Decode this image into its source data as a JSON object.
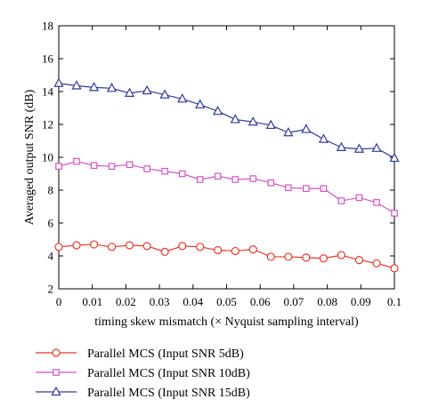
{
  "chart_data": {
    "type": "line",
    "xlabel": "timing skew mismatch (× Nyquist sampling interval)",
    "ylabel": "Averaged output SNR (dB)",
    "xlim": [
      0,
      0.1
    ],
    "ylim": [
      2,
      18
    ],
    "xticks": [
      "0",
      "0.01",
      "0.02",
      "0.03",
      "0.04",
      "0.05",
      "0.06",
      "0.07",
      "0.08",
      "0.09",
      "0.1"
    ],
    "yticks": [
      "2",
      "4",
      "6",
      "8",
      "10",
      "12",
      "14",
      "16",
      "18"
    ],
    "grid": false,
    "legend_position": "below-left",
    "x": [
      0,
      0.0053,
      0.0105,
      0.0158,
      0.0211,
      0.0263,
      0.0316,
      0.0368,
      0.0421,
      0.0474,
      0.0526,
      0.0579,
      0.0632,
      0.0684,
      0.0737,
      0.0789,
      0.0842,
      0.0895,
      0.0947,
      0.1
    ],
    "series": [
      {
        "name": "Parallel MCS (Input SNR 5dB)",
        "marker": "circle",
        "color": "#e8392a",
        "values": [
          4.55,
          4.65,
          4.7,
          4.55,
          4.65,
          4.6,
          4.25,
          4.6,
          4.55,
          4.35,
          4.3,
          4.4,
          3.95,
          3.95,
          3.9,
          3.85,
          4.05,
          3.75,
          3.55,
          3.25
        ]
      },
      {
        "name": "Parallel MCS (Input SNR 10dB)",
        "marker": "square",
        "color": "#d652c8",
        "values": [
          9.45,
          9.75,
          9.5,
          9.45,
          9.55,
          9.3,
          9.15,
          9.0,
          8.65,
          8.85,
          8.65,
          8.7,
          8.45,
          8.15,
          8.1,
          8.1,
          7.35,
          7.55,
          7.25,
          6.6
        ]
      },
      {
        "name": "Parallel MCS (Input SNR 15dB)",
        "marker": "triangle",
        "color": "#2e3a9e",
        "values": [
          14.5,
          14.35,
          14.25,
          14.2,
          13.9,
          14.05,
          13.8,
          13.55,
          13.2,
          12.8,
          12.3,
          12.15,
          11.95,
          11.5,
          11.7,
          11.1,
          10.6,
          10.5,
          10.55,
          9.95
        ]
      }
    ]
  }
}
